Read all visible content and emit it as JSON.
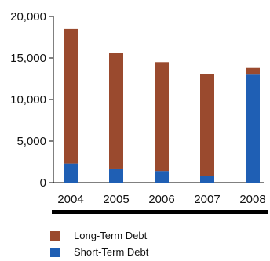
{
  "chart_data": {
    "type": "bar",
    "stacked": true,
    "categories": [
      "2004",
      "2005",
      "2006",
      "2007",
      "2008"
    ],
    "series": [
      {
        "name": "Short-Term Debt",
        "color": "#1f5fb4",
        "values": [
          2300,
          1700,
          1400,
          800,
          13000
        ]
      },
      {
        "name": "Long-Term Debt",
        "color": "#9a4a2e",
        "values": [
          16200,
          13900,
          13100,
          12300,
          800
        ]
      }
    ],
    "ylim": [
      0,
      20000
    ],
    "yticks": [
      "0",
      "5,000",
      "10,000",
      "15,000",
      "20,000"
    ],
    "ytick_values": [
      0,
      5000,
      10000,
      15000,
      20000
    ],
    "grid": false,
    "legend_position": "bottom",
    "legend_order": [
      "Long-Term Debt",
      "Short-Term Debt"
    ]
  }
}
